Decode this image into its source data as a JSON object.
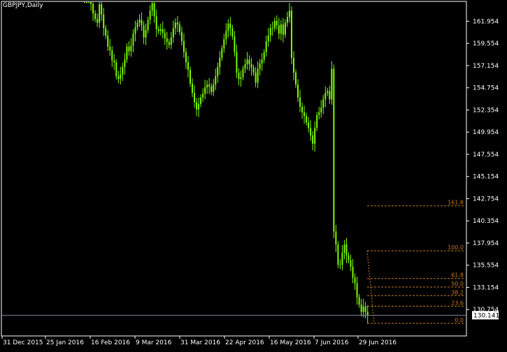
{
  "window": {
    "title": "GBPJPY,Daily"
  },
  "colors": {
    "background": "#000000",
    "border": "#ffffff",
    "candle": "#7cfc00",
    "fibo": "#c47a1f",
    "bid_line": "#778899"
  },
  "chart_data": {
    "type": "candlestick",
    "symbol": "GBPJPY",
    "timeframe": "Daily",
    "y_ticks": [
      "161.954",
      "159.554",
      "157.154",
      "154.754",
      "152.354",
      "149.954",
      "147.554",
      "145.154",
      "142.754",
      "140.354",
      "137.954",
      "135.554",
      "133.154",
      "130.754"
    ],
    "x_ticks": [
      "31 Dec 2015",
      "25 Jan 2016",
      "16 Feb 2016",
      "9 Mar 2016",
      "31 Mar 2016",
      "22 Apr 2016",
      "16 May 2016",
      "7 Jun 2016",
      "29 Jun 2016"
    ],
    "ylim": [
      127.9,
      164.1
    ],
    "bid_price": "130.141",
    "closes": [
      165.6,
      166.9,
      165.1,
      163.8,
      162.8,
      162.2,
      161.8,
      163.8,
      162.7,
      161.2,
      160.4,
      159.2,
      158.8,
      157.7,
      157.5,
      156.0,
      155.7,
      156.2,
      157.0,
      157.8,
      159.2,
      158.7,
      159.3,
      160.6,
      161.3,
      161.8,
      162.1,
      161.5,
      160.2,
      161.0,
      162.1,
      163.1,
      163.9,
      162.5,
      161.1,
      160.9,
      161.1,
      160.7,
      160.1,
      159.7,
      159.4,
      160.2,
      161.2,
      161.8,
      161.6,
      160.8,
      159.8,
      158.6,
      157.5,
      156.7,
      155.2,
      154.2,
      153.2,
      152.4,
      153.0,
      153.7,
      154.1,
      154.8,
      155.1,
      154.9,
      154.3,
      155.1,
      156.0,
      157.0,
      158.0,
      159.0,
      160.0,
      160.9,
      161.7,
      161.2,
      160.3,
      158.6,
      156.4,
      155.7,
      155.9,
      156.8,
      157.3,
      157.8,
      157.3,
      156.9,
      156.4,
      155.3,
      156.8,
      157.4,
      157.8,
      158.6,
      159.8,
      160.4,
      161.2,
      161.2,
      162.0,
      161.5,
      160.6,
      161.6,
      160.5,
      161.8,
      162.4,
      163.1,
      158.0,
      156.4,
      155.1,
      153.7,
      152.7,
      152.1,
      151.7,
      151.0,
      150.4,
      149.6,
      148.7,
      150.4,
      151.8,
      152.1,
      152.6,
      153.5,
      154.2,
      154.4,
      153.5,
      156.8,
      139.2,
      137.8,
      135.6,
      135.6,
      136.9,
      137.8,
      136.6,
      136.1,
      135.4,
      134.2,
      133.6,
      132.1,
      131.3,
      130.5,
      131.1,
      130.5,
      130.1
    ],
    "fibonacci": {
      "levels": [
        {
          "label": "161.8",
          "price": 141.98
        },
        {
          "label": "100.0",
          "price": 137.11
        },
        {
          "label": "61.8",
          "price": 134.12
        },
        {
          "label": "50.0",
          "price": 133.19
        },
        {
          "label": "38.2",
          "price": 132.26
        },
        {
          "label": "23.6",
          "price": 131.12
        },
        {
          "label": "0.0",
          "price": 129.26
        }
      ]
    }
  }
}
